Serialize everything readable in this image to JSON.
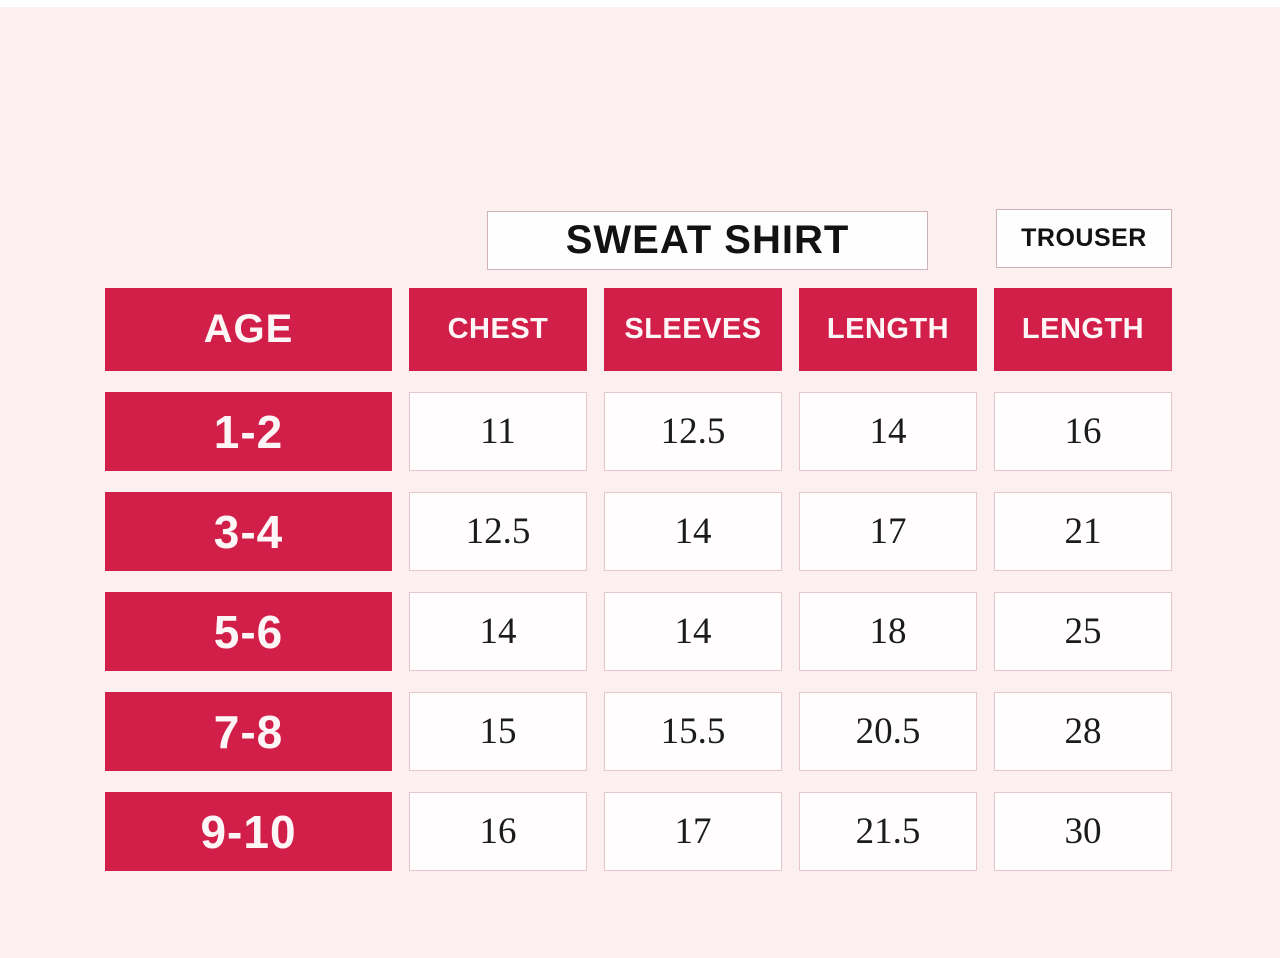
{
  "page": {
    "background": "#fbeff0",
    "accent_red": "#d21f4a"
  },
  "group_headers": {
    "sweat_shirt": "SWEAT SHIRT",
    "trouser": "TROUSER"
  },
  "table": {
    "age_header": "AGE",
    "columns": [
      "CHEST",
      "SLEEVES",
      "LENGTH",
      "LENGTH"
    ],
    "rows": [
      {
        "age": "1-2",
        "values": [
          "11",
          "12.5",
          "14",
          "16"
        ]
      },
      {
        "age": "3-4",
        "values": [
          "12.5",
          "14",
          "17",
          "21"
        ]
      },
      {
        "age": "5-6",
        "values": [
          "14",
          "14",
          "18",
          "25"
        ]
      },
      {
        "age": "7-8",
        "values": [
          "15",
          "15.5",
          "20.5",
          "28"
        ]
      },
      {
        "age": "9-10",
        "values": [
          "16",
          "17",
          "21.5",
          "30"
        ]
      }
    ]
  }
}
